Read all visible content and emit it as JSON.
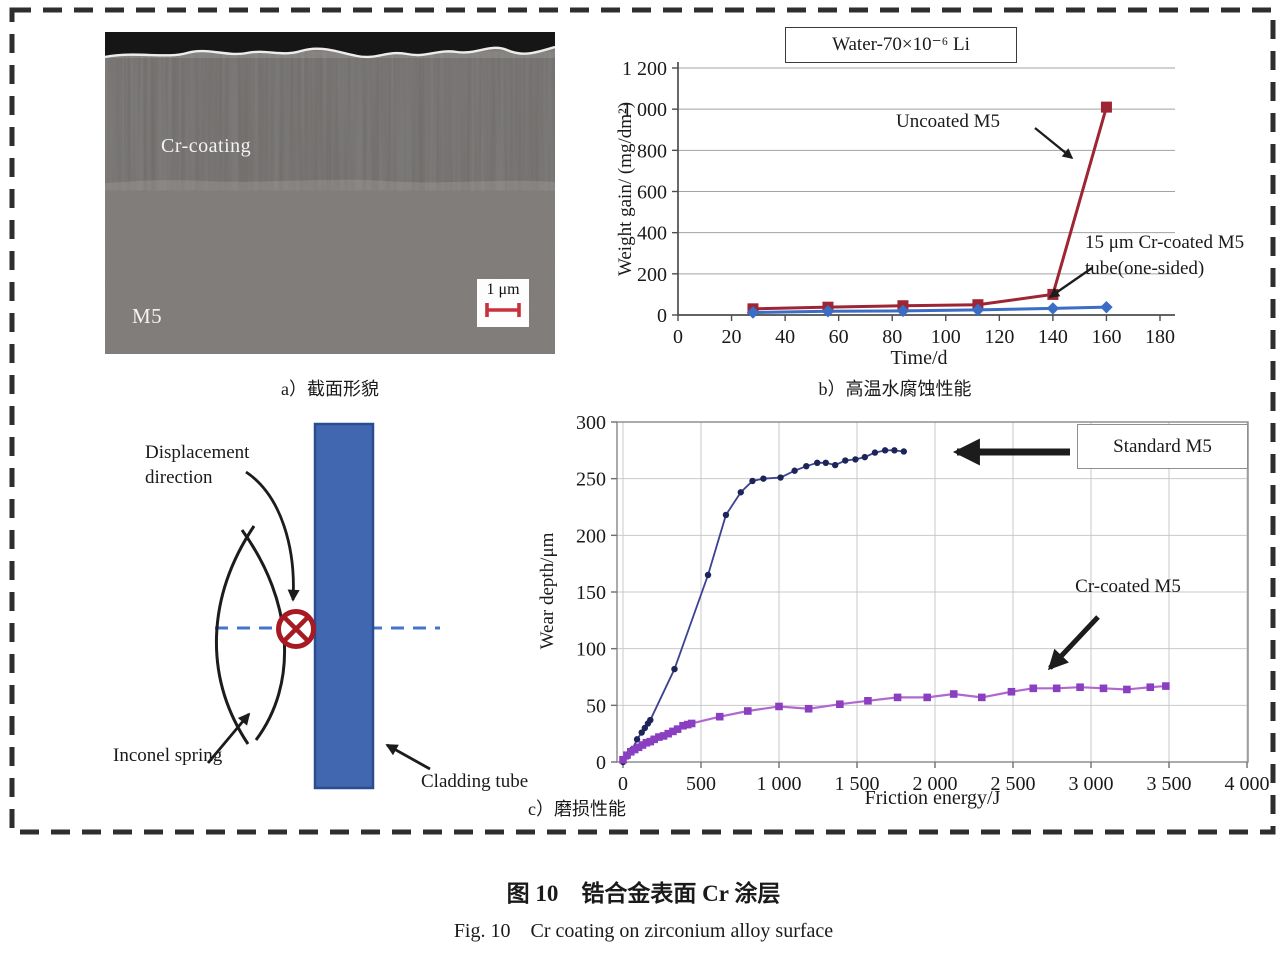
{
  "figure": {
    "caption_zh": "图 10　锆合金表面 Cr 涂层",
    "caption_en": "Fig. 10　Cr coating on zirconium alloy surface"
  },
  "panel_a": {
    "caption": "a）截面形貌",
    "coating_label": "Cr-coating",
    "substrate_label": "M5",
    "scalebar_text": "1 μm"
  },
  "panel_b": {
    "caption": "b）高温水腐蚀性能",
    "annotation_uncoated": "Uncoated M5",
    "annotation_coated_line1": "15 μm Cr-coated M5",
    "annotation_coated_line2": "tube(one-sided)"
  },
  "panel_c": {
    "caption": "c）磨损性能",
    "schematic": {
      "displacement_line1": "Displacement",
      "displacement_line2": "direction",
      "spring_label": "Inconel spring",
      "tube_label": "Cladding tube"
    }
  },
  "chart_data": [
    {
      "type": "line",
      "title": "Water-70×10⁻⁶ Li",
      "xlabel": "Time/d",
      "ylabel": "Weight gain/ (mg/dm²)",
      "xlim": [
        0,
        180
      ],
      "ylim": [
        0,
        1200
      ],
      "x_ticks": [
        0,
        20,
        40,
        60,
        80,
        100,
        120,
        140,
        160,
        180
      ],
      "x_tick_labels": [
        "0",
        "20",
        "40",
        "60",
        "80",
        "100",
        "120",
        "140",
        "160",
        "180"
      ],
      "y_ticks": [
        0,
        200,
        400,
        600,
        800,
        1000,
        1200
      ],
      "y_tick_labels": [
        "0",
        "200",
        "400",
        "600",
        "800",
        "1 000",
        "1 200"
      ],
      "grid": "horizontal",
      "legend_position": "annotations-on-plot",
      "series": [
        {
          "name": "Uncoated M5",
          "marker": "square",
          "line_color": "#9e2533",
          "marker_color": "#9e2533",
          "x": [
            28,
            56,
            84,
            112,
            140,
            160
          ],
          "y": [
            30,
            38,
            45,
            50,
            100,
            1010
          ]
        },
        {
          "name": "15 μm Cr-coated M5 tube(one-sided)",
          "marker": "diamond",
          "line_color": "#3a6dc5",
          "marker_color": "#3a6dc5",
          "x": [
            28,
            56,
            84,
            112,
            140,
            160
          ],
          "y": [
            12,
            18,
            20,
            25,
            32,
            38
          ]
        }
      ]
    },
    {
      "type": "line",
      "title": "",
      "xlabel": "Friction energy/J",
      "ylabel": "Wear depth/μm",
      "xlim": [
        0,
        4000
      ],
      "ylim": [
        0,
        300
      ],
      "x_ticks": [
        0,
        500,
        1000,
        1500,
        2000,
        2500,
        3000,
        3500,
        4000
      ],
      "x_tick_labels": [
        "0",
        "500",
        "1 000",
        "1 500",
        "2 000",
        "2 500",
        "3 000",
        "3 500",
        "4 000"
      ],
      "y_ticks": [
        0,
        50,
        100,
        150,
        200,
        250,
        300
      ],
      "y_tick_labels": [
        "0",
        "50",
        "100",
        "150",
        "200",
        "250",
        "300"
      ],
      "grid": "both",
      "legend_position": "annotations-on-plot",
      "series": [
        {
          "name": "Standard M5",
          "marker": "circle",
          "line_color": "#3c4191",
          "marker_color": "#1d2558",
          "x": [
            0,
            30,
            60,
            90,
            120,
            140,
            160,
            175,
            330,
            545,
            660,
            755,
            830,
            900,
            1010,
            1100,
            1175,
            1245,
            1300,
            1360,
            1425,
            1490,
            1550,
            1615,
            1680,
            1740,
            1800
          ],
          "y": [
            0,
            5,
            11,
            20,
            26,
            30,
            34,
            37,
            82,
            165,
            218,
            238,
            248,
            250,
            251,
            257,
            261,
            264,
            264,
            262,
            266,
            267,
            269,
            273,
            275,
            275,
            274
          ]
        },
        {
          "name": "Cr-coated M5",
          "marker": "square",
          "line_color": "#b168ce",
          "marker_color": "#8a3fc1",
          "x": [
            0,
            25,
            50,
            75,
            100,
            125,
            150,
            175,
            200,
            230,
            260,
            290,
            320,
            350,
            385,
            415,
            440,
            620,
            800,
            1000,
            1190,
            1390,
            1570,
            1760,
            1950,
            2120,
            2300,
            2490,
            2630,
            2780,
            2930,
            3080,
            3230,
            3380,
            3480
          ],
          "y": [
            2,
            6,
            9,
            11,
            13,
            15,
            17,
            18,
            20,
            22,
            23,
            25,
            27,
            29,
            32,
            33,
            34,
            40,
            45,
            49,
            47,
            51,
            54,
            57,
            57,
            60,
            57,
            62,
            65,
            65,
            66,
            65,
            64,
            66,
            67
          ]
        }
      ]
    }
  ],
  "colors": {
    "uncoated_series": "#9e2533",
    "coated_series_b": "#3a6dc5",
    "standard_series": "#3c4191",
    "cr_coated_series": "#b168ce",
    "cladding_tube_fill": "#4167b0",
    "cladding_tube_border": "#2b4c8f",
    "contact_symbol": "#a81a22",
    "tube_axis_dashed_line": "#4575c8",
    "figure_border": "#2e2e2e"
  }
}
